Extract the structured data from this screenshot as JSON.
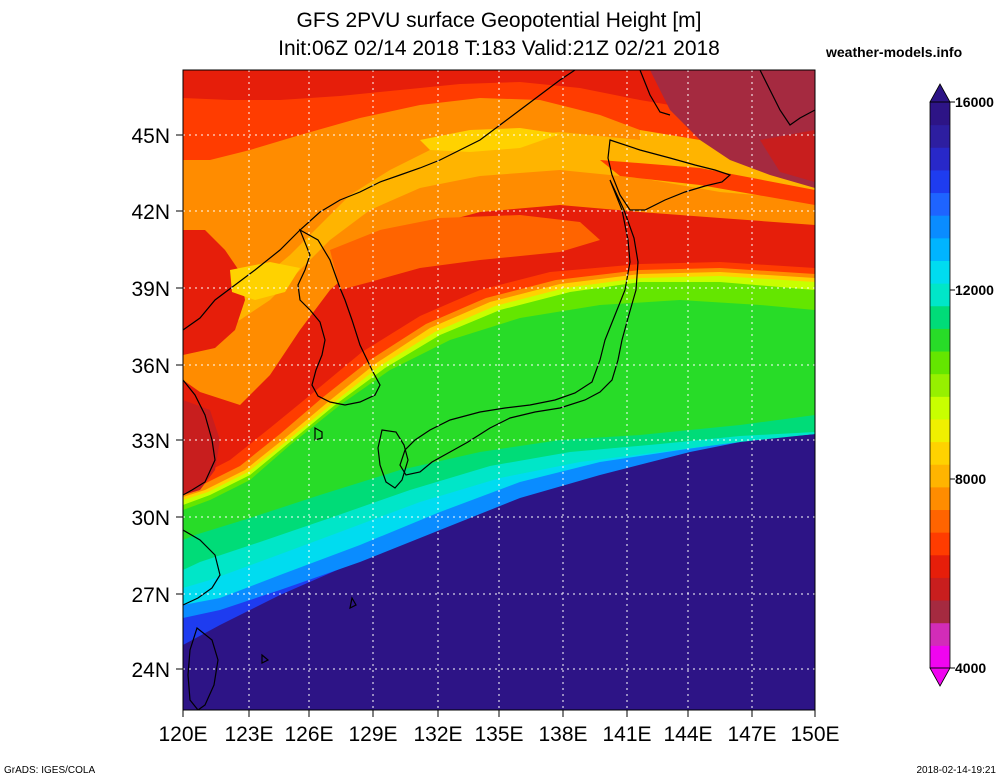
{
  "header": {
    "title_line1": "GFS 2PVU surface Geopotential Height [m]",
    "title_line2": "Init:06Z 02/14 2018 T:183 Valid:21Z 02/21 2018",
    "site": "weather-models.info"
  },
  "map": {
    "lon_range": [
      120,
      150
    ],
    "lat_range": [
      22.5,
      48
    ],
    "lon_ticks": [
      "120E",
      "123E",
      "126E",
      "129E",
      "132E",
      "135E",
      "138E",
      "141E",
      "144E",
      "147E",
      "150E"
    ],
    "lat_ticks": [
      "45N",
      "42N",
      "39N",
      "36N",
      "33N",
      "30N",
      "27N",
      "24N"
    ]
  },
  "colorbar": {
    "labels": [
      "16000",
      "12000",
      "8000",
      "4000"
    ],
    "colors": [
      "#f005f0",
      "#d22cb8",
      "#a52a40",
      "#c81e1e",
      "#e61e0a",
      "#ff3c00",
      "#ff6400",
      "#ff8c00",
      "#ffb400",
      "#ffd200",
      "#f0f000",
      "#c8ff00",
      "#96f000",
      "#64e600",
      "#28dc28",
      "#00dc78",
      "#00e6c8",
      "#00dcf0",
      "#00b4ff",
      "#0a8cff",
      "#1e64ff",
      "#1e3cf0",
      "#2828c8",
      "#2d1ea0",
      "#2d1486"
    ]
  },
  "footer": {
    "left": "GrADS: IGES/COLA",
    "right": "2018-02-14-19:21"
  }
}
